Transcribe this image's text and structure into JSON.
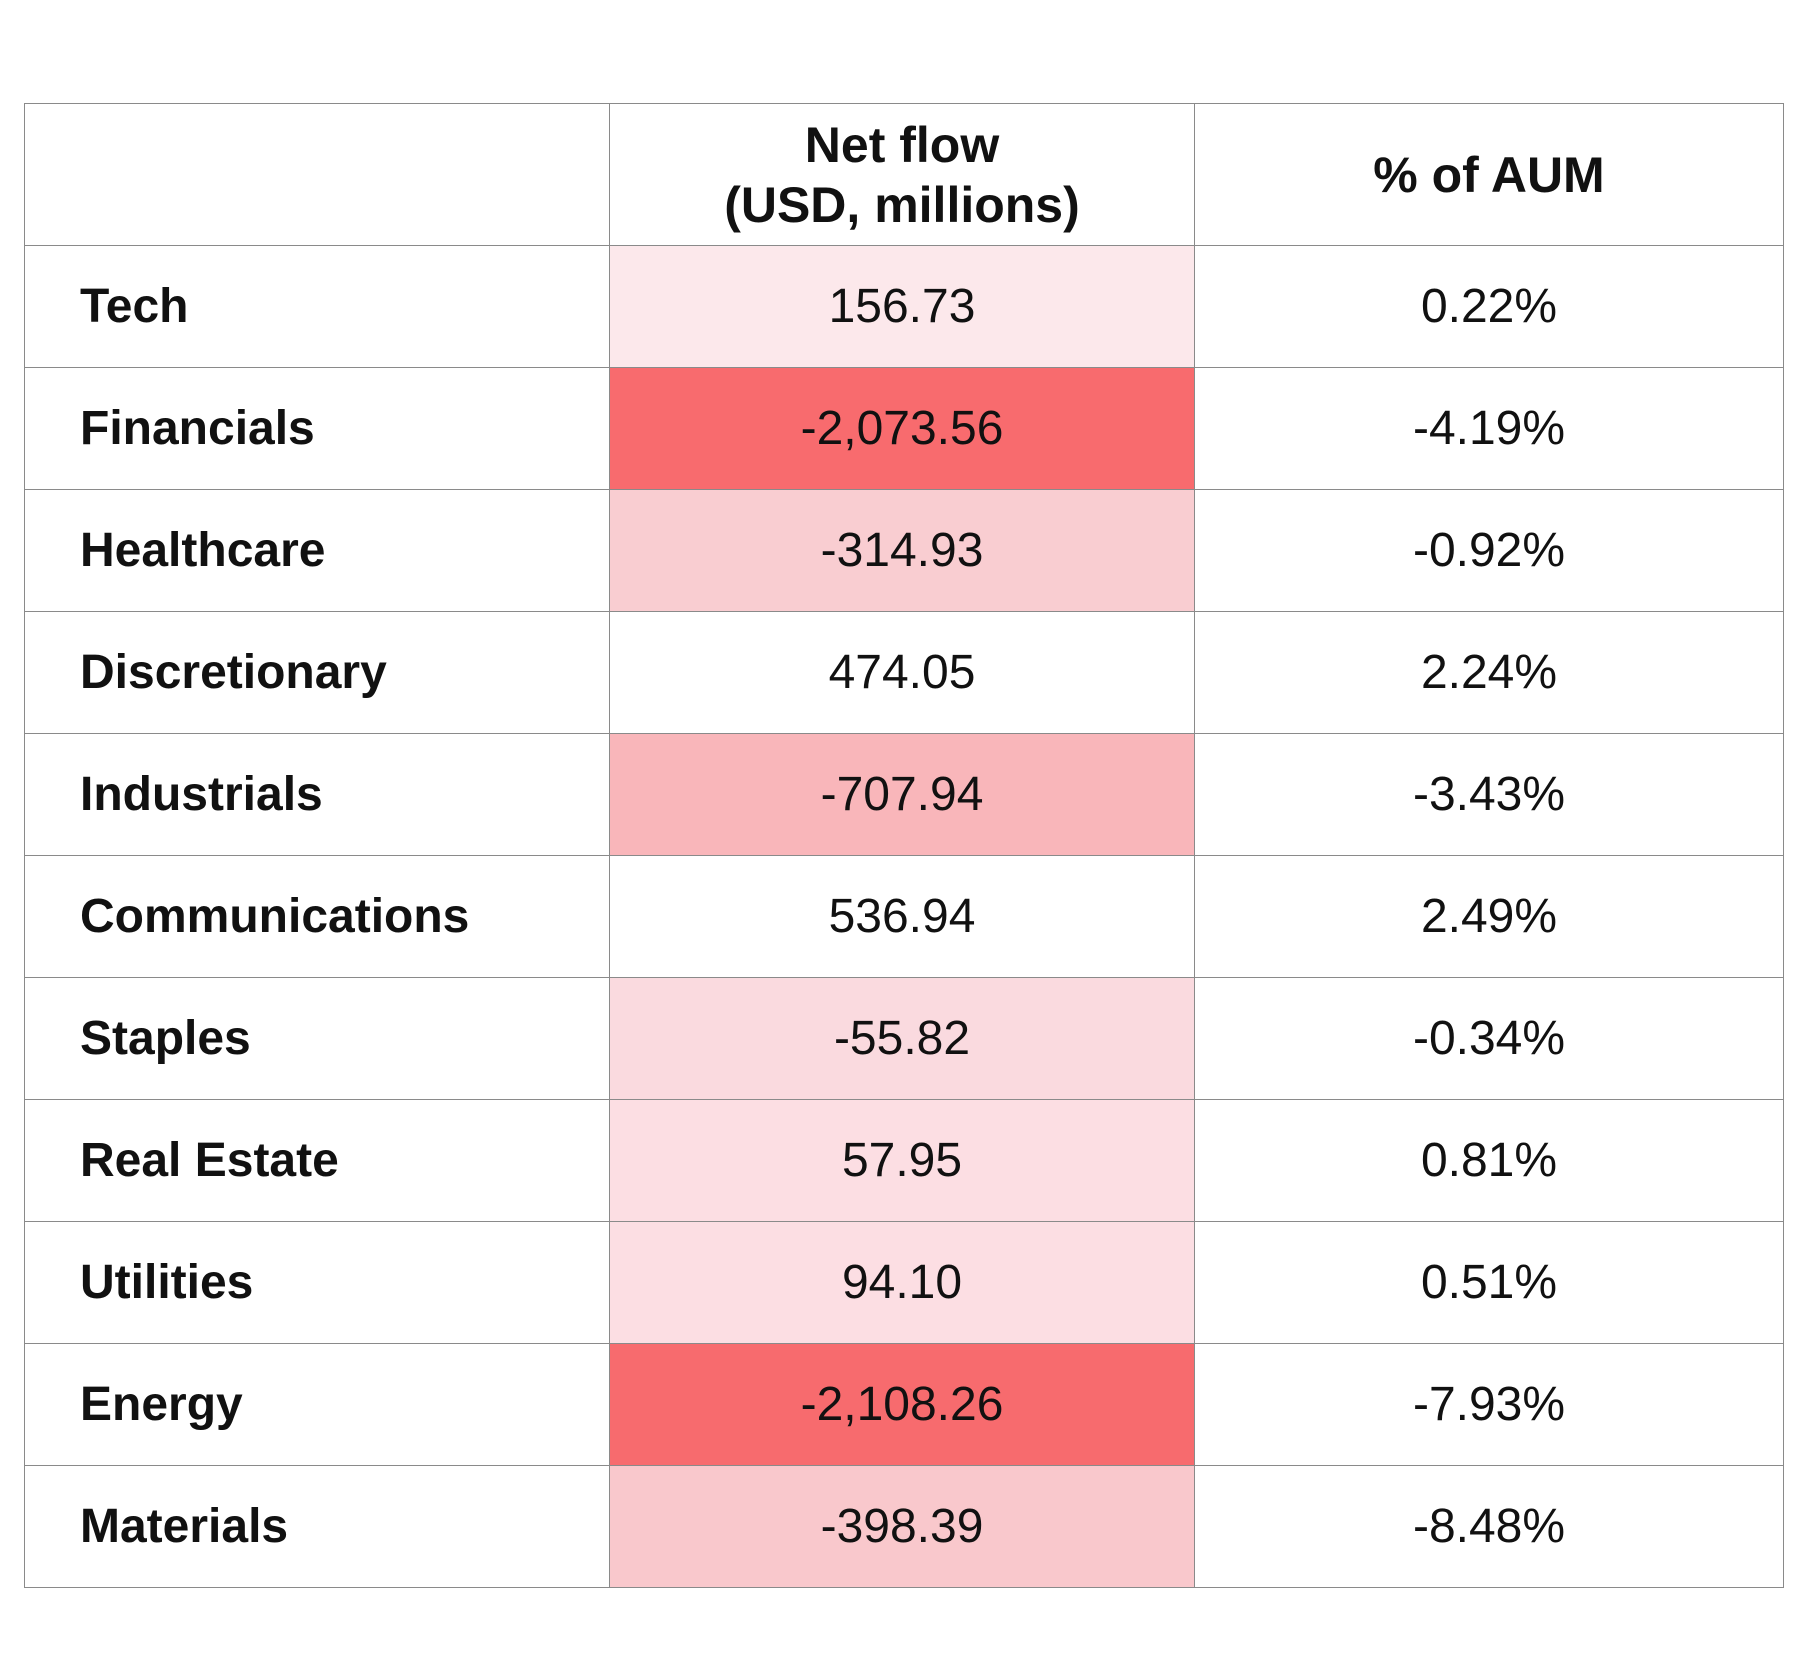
{
  "table": {
    "header": {
      "sector": "",
      "net_flow_line1": "Net flow",
      "net_flow_line2": "(USD, millions)",
      "aum": "% of AUM"
    },
    "colors": {
      "grid": "#8a8a8a",
      "scale_light": "#fce8eb",
      "scale_dark": "#f76b6e",
      "positive_large": "#ffffff"
    }
  },
  "chart_data": {
    "type": "table",
    "columns": [
      "",
      "Net flow (USD, millions)",
      "% of AUM"
    ],
    "rows": [
      {
        "sector": "Tech",
        "net_flow": "156.73",
        "aum": "0.22%",
        "heat": "#fce8eb"
      },
      {
        "sector": "Financials",
        "net_flow": "-2,073.56",
        "aum": "-4.19%",
        "heat": "#f86b6e"
      },
      {
        "sector": "Healthcare",
        "net_flow": "-314.93",
        "aum": "-0.92%",
        "heat": "#f9cdd1"
      },
      {
        "sector": "Discretionary",
        "net_flow": "474.05",
        "aum": "2.24%",
        "heat": "#ffffff"
      },
      {
        "sector": "Industrials",
        "net_flow": "-707.94",
        "aum": "-3.43%",
        "heat": "#f9b6ba"
      },
      {
        "sector": "Communications",
        "net_flow": "536.94",
        "aum": "2.49%",
        "heat": "#ffffff"
      },
      {
        "sector": "Staples",
        "net_flow": "-55.82",
        "aum": "-0.34%",
        "heat": "#fadadf"
      },
      {
        "sector": "Real Estate",
        "net_flow": "57.95",
        "aum": "0.81%",
        "heat": "#fcdee3"
      },
      {
        "sector": "Utilities",
        "net_flow": "94.10",
        "aum": "0.51%",
        "heat": "#fcdee3"
      },
      {
        "sector": "Energy",
        "net_flow": "-2,108.26",
        "aum": "-7.93%",
        "heat": "#f76b6e"
      },
      {
        "sector": "Materials",
        "net_flow": "-398.39",
        "aum": "-8.48%",
        "heat": "#f9c8cc"
      }
    ]
  }
}
